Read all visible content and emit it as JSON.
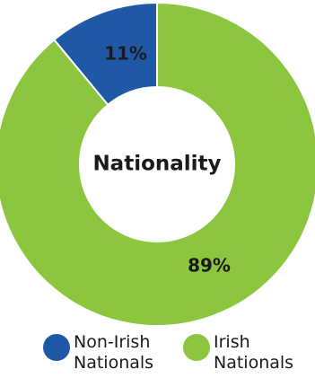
{
  "chart_data": {
    "type": "pie",
    "title": "Nationality",
    "categories": [
      "Non-Irish Nationals",
      "Irish Nationals"
    ],
    "values": [
      11,
      89
    ],
    "unit": "%",
    "data_labels": [
      "11%",
      "89%"
    ],
    "colors": [
      "#2058a8",
      "#8cc63f"
    ],
    "legend": [
      {
        "line1": "Non-Irish",
        "line2": "Nationals"
      },
      {
        "line1": "Irish",
        "line2": "Nationals"
      }
    ],
    "legend_position": "bottom"
  }
}
